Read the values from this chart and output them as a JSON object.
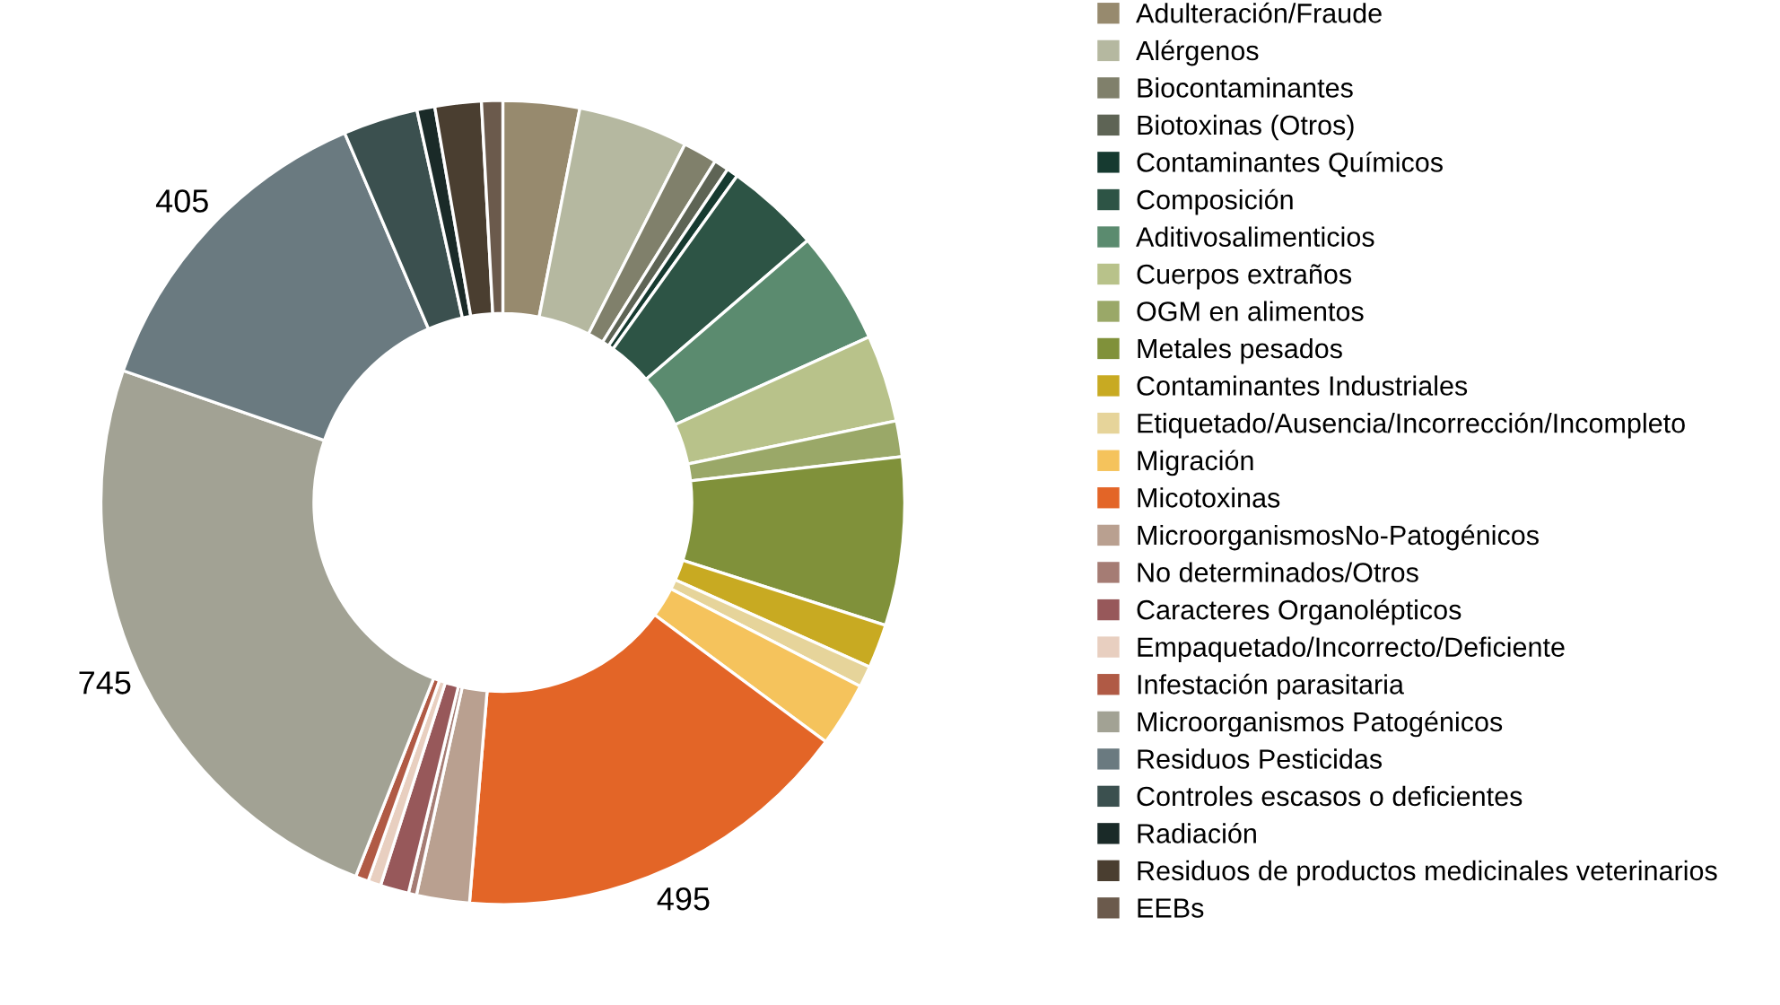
{
  "chart_data": {
    "type": "donut",
    "categories": [
      "Adulteración/Fraude",
      "Alérgenos",
      "Biocontaminantes",
      "Biotoxinas (Otros)",
      "Contaminantes Químicos",
      "Composición",
      "Aditivosalimenticios",
      "Cuerpos extraños",
      "OGM en alimentos",
      "Metales pesados",
      "Contaminantes Industriales",
      "Etiquetado/Ausencia/Incorrección/Incompleto",
      "Migración",
      "Micotoxinas",
      "MicroorganismosNo-Patogénicos",
      "No determinados/Otros",
      "Caracteres Organolépticos",
      "Empaquetado/Incorrecto/Deficiente",
      "Infestación parasitaria",
      "Microorganismos Patogénicos",
      "Residuos Pesticidas",
      "Controles escasos o deficientes",
      "Radiación",
      "Residuos de productos medicinales veterinarios",
      "EEBs"
    ],
    "values": [
      94,
      135,
      42,
      18,
      14,
      116,
      139,
      107,
      44,
      207,
      54,
      26,
      79,
      495,
      65,
      10,
      35,
      16,
      16,
      745,
      405,
      92,
      22,
      57,
      26
    ],
    "value_labels": [
      null,
      null,
      null,
      null,
      null,
      null,
      null,
      null,
      null,
      null,
      null,
      null,
      null,
      "495",
      null,
      null,
      null,
      null,
      null,
      "745",
      "405",
      null,
      null,
      null,
      null
    ],
    "colors": [
      "#978a6e",
      "#b5b8a0",
      "#80806b",
      "#5e6455",
      "#163a30",
      "#2d5445",
      "#5b8b6f",
      "#b8c28a",
      "#9aa868",
      "#80913a",
      "#c8aa22",
      "#e6d49a",
      "#f5c35c",
      "#e36527",
      "#b9a090",
      "#a57c74",
      "#97585a",
      "#e8cfc0",
      "#b05a45",
      "#a2a294",
      "#6a7a80",
      "#3b504f",
      "#1a2a28",
      "#4a3e30",
      "#6b5a4c"
    ],
    "legend": "right"
  }
}
